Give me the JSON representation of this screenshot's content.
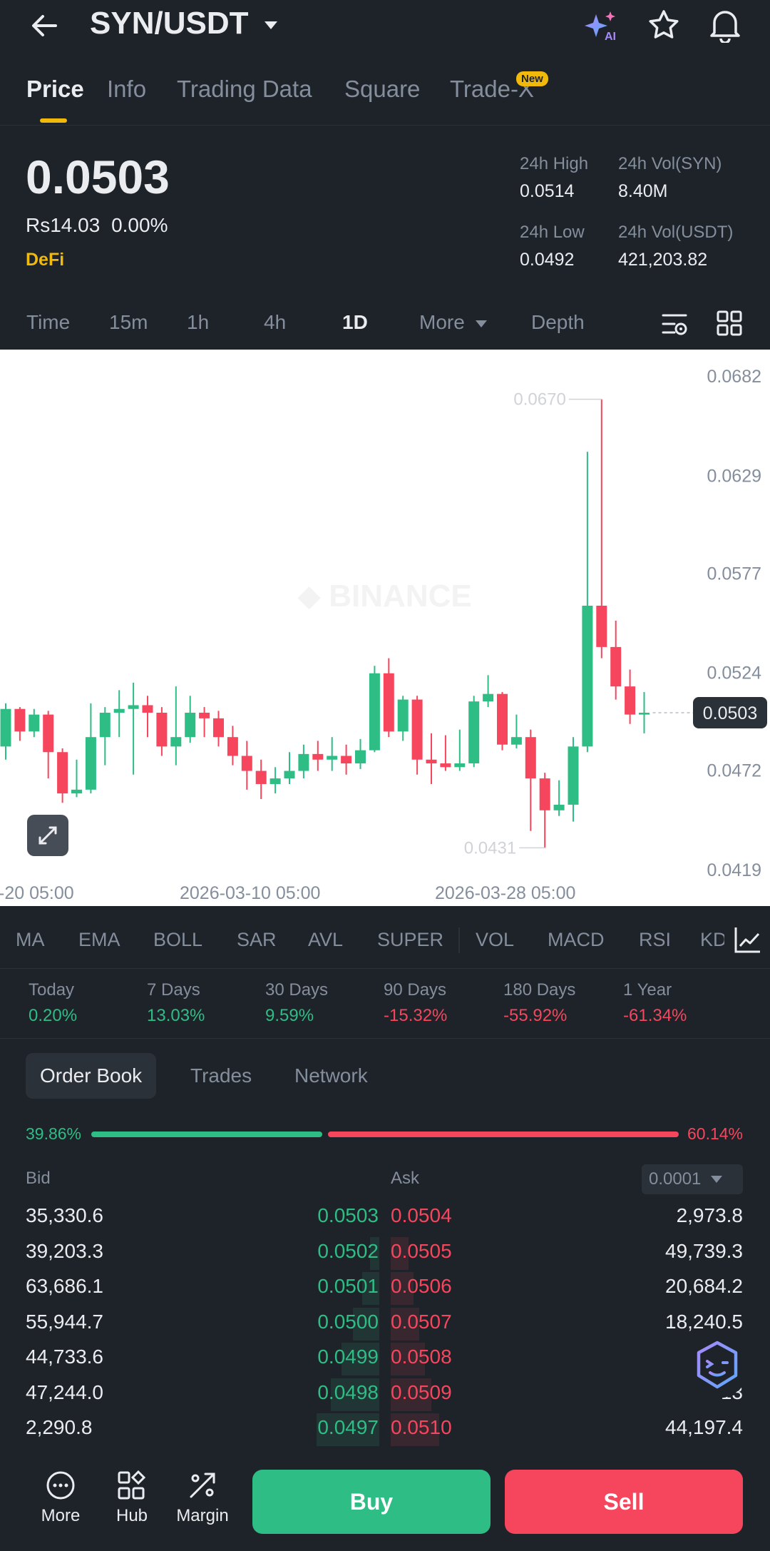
{
  "header": {
    "pair": "SYN/USDT",
    "back_icon": "arrow-left-icon",
    "ai_icon": "ai-sparkle-icon",
    "star_icon": "star-icon",
    "bell_icon": "bell-icon"
  },
  "tabs": [
    {
      "label": "Price"
    },
    {
      "label": "Info"
    },
    {
      "label": "Trading Data"
    },
    {
      "label": "Square"
    },
    {
      "label": "Trade-X"
    }
  ],
  "new_badge": "New",
  "ticker": {
    "price": "0.0503",
    "fiat": "Rs14.03",
    "change": "0.00%",
    "tag": "DeFi",
    "high_label": "24h High",
    "high": "0.0514",
    "vol_base_label": "24h Vol(SYN)",
    "vol_base": "8.40M",
    "low_label": "24h Low",
    "low": "0.0492",
    "vol_quote_label": "24h Vol(USDT)",
    "vol_quote": "421,203.82"
  },
  "timebar": [
    "Time",
    "15m",
    "1h",
    "4h",
    "1D",
    "More",
    "Depth"
  ],
  "chart_data": {
    "type": "candlestick",
    "y_ticks": [
      "0.0682",
      "0.0629",
      "0.0577",
      "0.0524",
      "0.0472",
      "0.0419"
    ],
    "ylim": [
      0.0419,
      0.0682
    ],
    "x_ticks": [
      "-20 05:00",
      "2026-03-10 05:00",
      "2026-03-28 05:00"
    ],
    "max_label": "0.0670",
    "min_label": "0.0431",
    "last_price": "0.0503",
    "candles": [
      [
        0.0485,
        0.0505,
        0.0508,
        0.0478
      ],
      [
        0.0505,
        0.0493,
        0.0506,
        0.0488
      ],
      [
        0.0493,
        0.0502,
        0.0505,
        0.049
      ],
      [
        0.0502,
        0.0482,
        0.0504,
        0.0468
      ],
      [
        0.0482,
        0.046,
        0.0484,
        0.0455
      ],
      [
        0.046,
        0.0462,
        0.0478,
        0.0458
      ],
      [
        0.0462,
        0.049,
        0.0508,
        0.046
      ],
      [
        0.049,
        0.0503,
        0.0506,
        0.0475
      ],
      [
        0.0503,
        0.0505,
        0.0515,
        0.049
      ],
      [
        0.0505,
        0.0507,
        0.0519,
        0.047
      ],
      [
        0.0507,
        0.0503,
        0.0512,
        0.049
      ],
      [
        0.0503,
        0.0485,
        0.0506,
        0.048
      ],
      [
        0.0485,
        0.049,
        0.0517,
        0.0475
      ],
      [
        0.049,
        0.0503,
        0.0512,
        0.0487
      ],
      [
        0.0503,
        0.05,
        0.0506,
        0.049
      ],
      [
        0.05,
        0.049,
        0.0504,
        0.0485
      ],
      [
        0.049,
        0.048,
        0.0496,
        0.0475
      ],
      [
        0.048,
        0.0472,
        0.0488,
        0.0462
      ],
      [
        0.0472,
        0.0465,
        0.0478,
        0.0457
      ],
      [
        0.0465,
        0.0468,
        0.0474,
        0.046
      ],
      [
        0.0468,
        0.0472,
        0.0482,
        0.0465
      ],
      [
        0.0472,
        0.0481,
        0.0486,
        0.0468
      ],
      [
        0.0481,
        0.0478,
        0.0488,
        0.0472
      ],
      [
        0.0478,
        0.048,
        0.049,
        0.0472
      ],
      [
        0.048,
        0.0476,
        0.0486,
        0.047
      ],
      [
        0.0476,
        0.0483,
        0.0489,
        0.0473
      ],
      [
        0.0483,
        0.0524,
        0.0528,
        0.0482
      ],
      [
        0.0524,
        0.0493,
        0.0532,
        0.049
      ],
      [
        0.0493,
        0.051,
        0.0512,
        0.0488
      ],
      [
        0.051,
        0.0478,
        0.0512,
        0.047
      ],
      [
        0.0478,
        0.0476,
        0.0492,
        0.0465
      ],
      [
        0.0476,
        0.0474,
        0.0491,
        0.0472
      ],
      [
        0.0474,
        0.0476,
        0.0494,
        0.0472
      ],
      [
        0.0476,
        0.0509,
        0.0512,
        0.0474
      ],
      [
        0.0509,
        0.0513,
        0.0523,
        0.0506
      ],
      [
        0.0513,
        0.0486,
        0.0514,
        0.0483
      ],
      [
        0.0486,
        0.049,
        0.0502,
        0.0484
      ],
      [
        0.049,
        0.0468,
        0.0494,
        0.044
      ],
      [
        0.0468,
        0.0451,
        0.0471,
        0.0431
      ],
      [
        0.0451,
        0.0454,
        0.0467,
        0.0448
      ],
      [
        0.0454,
        0.0485,
        0.049,
        0.0445
      ],
      [
        0.0485,
        0.056,
        0.0642,
        0.0482
      ],
      [
        0.056,
        0.0538,
        0.067,
        0.0532
      ],
      [
        0.0538,
        0.0517,
        0.0552,
        0.051
      ],
      [
        0.0517,
        0.0502,
        0.0526,
        0.0497
      ],
      [
        0.0502,
        0.0503,
        0.0514,
        0.0492
      ]
    ]
  },
  "indicators": [
    "MA",
    "EMA",
    "BOLL",
    "SAR",
    "AVL",
    "SUPER",
    "VOL",
    "MACD",
    "RSI",
    "KD"
  ],
  "performance": [
    {
      "label": "Today",
      "value": "0.20%",
      "dir": "up"
    },
    {
      "label": "7 Days",
      "value": "13.03%",
      "dir": "up"
    },
    {
      "label": "30 Days",
      "value": "9.59%",
      "dir": "up"
    },
    {
      "label": "90 Days",
      "value": "-15.32%",
      "dir": "down"
    },
    {
      "label": "180 Days",
      "value": "-55.92%",
      "dir": "down"
    },
    {
      "label": "1 Year",
      "value": "-61.34%",
      "dir": "down"
    }
  ],
  "orderbook_tabs": [
    "Order Book",
    "Trades",
    "Network"
  ],
  "ratio": {
    "bid": "39.86%",
    "ask": "60.14%",
    "bid_fraction": 0.3986
  },
  "ob_head": {
    "bid": "Bid",
    "ask": "Ask",
    "precision": "0.0001"
  },
  "orders": [
    {
      "bid_qty": "35,330.6",
      "bid": "0.0503",
      "ask": "0.0504",
      "ask_qty": "2,973.8"
    },
    {
      "bid_qty": "39,203.3",
      "bid": "0.0502",
      "ask": "0.0505",
      "ask_qty": "49,739.3"
    },
    {
      "bid_qty": "63,686.1",
      "bid": "0.0501",
      "ask": "0.0506",
      "ask_qty": "20,684.2"
    },
    {
      "bid_qty": "55,944.7",
      "bid": "0.0500",
      "ask": "0.0507",
      "ask_qty": "18,240.5"
    },
    {
      "bid_qty": "44,733.6",
      "bid": "0.0499",
      "ask": "0.0508",
      "ask_qty": "29"
    },
    {
      "bid_qty": "47,244.0",
      "bid": "0.0498",
      "ask": "0.0509",
      "ask_qty": "13"
    },
    {
      "bid_qty": "2,290.8",
      "bid": "0.0497",
      "ask": "0.0510",
      "ask_qty": "44,197.4"
    }
  ],
  "bottom": {
    "more": "More",
    "hub": "Hub",
    "margin": "Margin",
    "buy": "Buy",
    "sell": "Sell"
  }
}
